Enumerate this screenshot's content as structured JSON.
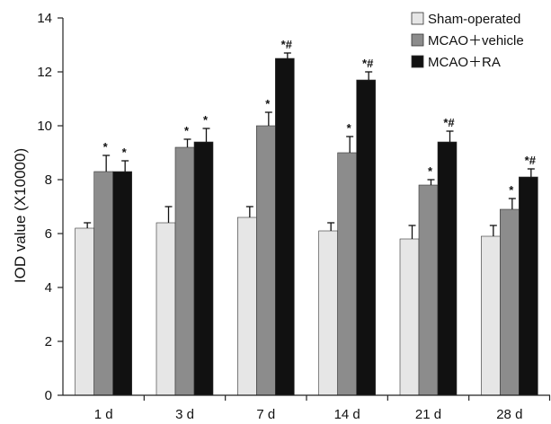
{
  "chart_data": {
    "type": "bar",
    "title": "",
    "xlabel": "",
    "ylabel": "IOD value (X10000)",
    "ylim": [
      0,
      14
    ],
    "yticks": [
      0,
      2,
      4,
      6,
      8,
      10,
      12,
      14
    ],
    "categories": [
      "1 d",
      "3 d",
      "7 d",
      "14 d",
      "21 d",
      "28 d"
    ],
    "legend_position": "top-right",
    "grid": false,
    "series": [
      {
        "name": "Sham-operated",
        "color": "#e6e6e6",
        "values": [
          6.2,
          6.4,
          6.6,
          6.1,
          5.8,
          5.9
        ],
        "errors": [
          0.2,
          0.6,
          0.4,
          0.3,
          0.5,
          0.4
        ],
        "labels": [
          "",
          "",
          "",
          "",
          "",
          ""
        ]
      },
      {
        "name": "MCAO＋vehicle",
        "color": "#8c8c8c",
        "values": [
          8.3,
          9.2,
          10.0,
          9.0,
          7.8,
          6.9
        ],
        "errors": [
          0.6,
          0.3,
          0.5,
          0.6,
          0.2,
          0.4
        ],
        "labels": [
          "*",
          "*",
          "*",
          "*",
          "*",
          "*"
        ]
      },
      {
        "name": "MCAO＋RA",
        "color": "#111111",
        "values": [
          8.3,
          9.4,
          12.5,
          11.7,
          9.4,
          8.1
        ],
        "errors": [
          0.4,
          0.5,
          0.2,
          0.3,
          0.4,
          0.3
        ],
        "labels": [
          "*",
          "*",
          "*#",
          "*#",
          "*#",
          "*#"
        ]
      }
    ]
  }
}
